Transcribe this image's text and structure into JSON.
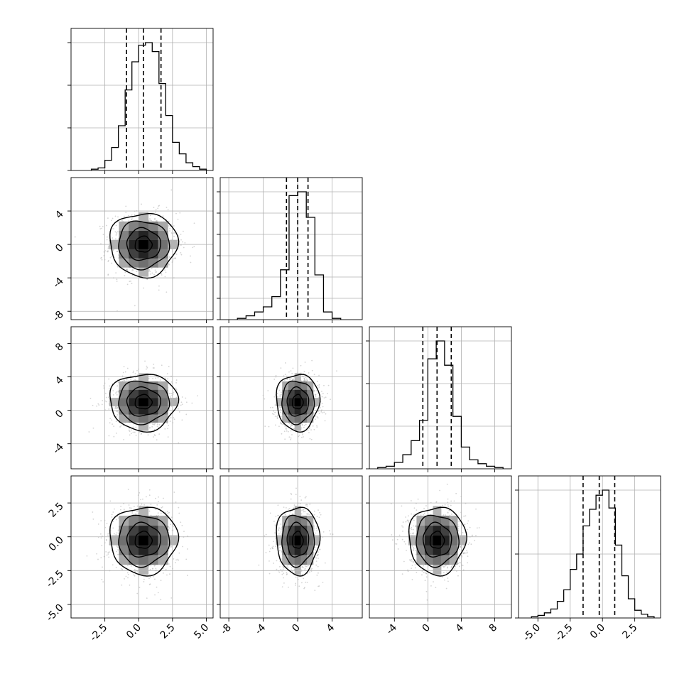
{
  "figure": {
    "type": "corner-plot",
    "colors": {
      "histogram": "#000000",
      "contour": "#000000",
      "scatter": "#b0b0b0",
      "grid": "#b0b0b0",
      "axes": "#000000",
      "quantile_lines": "#000000"
    }
  },
  "chart_data": [
    {
      "type": "histogram",
      "panel": "diag-0",
      "xlim": [
        -5,
        5.5
      ],
      "bins_x": [
        -3.5,
        -3.0,
        -2.5,
        -2.0,
        -1.5,
        -1.0,
        -0.5,
        0.0,
        0.5,
        1.0,
        1.5,
        2.0,
        2.5,
        3.0,
        3.5,
        4.0,
        4.5,
        5.0
      ],
      "heights": [
        0.01,
        0.02,
        0.08,
        0.18,
        0.35,
        0.63,
        0.85,
        0.98,
        1.0,
        0.93,
        0.68,
        0.43,
        0.22,
        0.13,
        0.06,
        0.03,
        0.01
      ],
      "quantiles": [
        -0.9,
        0.35,
        1.65
      ],
      "yticks_count": 4,
      "grid": true
    },
    {
      "type": "histogram",
      "panel": "diag-1",
      "xlim": [
        -9,
        7.5
      ],
      "bins_x": [
        -7.0,
        -6.0,
        -5.0,
        -4.0,
        -3.0,
        -2.0,
        -1.0,
        0.0,
        1.0,
        2.0,
        3.0,
        4.0,
        5.0
      ],
      "heights": [
        0.01,
        0.03,
        0.06,
        0.1,
        0.18,
        0.39,
        0.97,
        1.0,
        0.8,
        0.35,
        0.06,
        0.01
      ],
      "quantiles": [
        -1.3,
        0.0,
        1.2
      ],
      "xticks": [
        "-8",
        "-4",
        "0",
        "4"
      ],
      "yticks_count": 7,
      "grid": true
    },
    {
      "type": "histogram",
      "panel": "diag-2",
      "xlim": [
        -7,
        10
      ],
      "bins_x": [
        -6.0,
        -5.0,
        -4.0,
        -3.0,
        -2.0,
        -1.0,
        0.0,
        1.0,
        2.0,
        3.0,
        4.0,
        5.0,
        6.0,
        7.0,
        8.0,
        9.0
      ],
      "heights": [
        0.01,
        0.02,
        0.05,
        0.11,
        0.22,
        0.38,
        0.86,
        1.0,
        0.81,
        0.41,
        0.17,
        0.07,
        0.04,
        0.02,
        0.01
      ],
      "quantiles": [
        -0.6,
        1.1,
        2.8
      ],
      "xticks": [
        "-4",
        "0",
        "4",
        "8"
      ],
      "yticks_count": 4,
      "grid": true
    },
    {
      "type": "histogram",
      "panel": "diag-3",
      "xlim": [
        -6.5,
        4.5
      ],
      "bins_x": [
        -5.5,
        -5.0,
        -4.5,
        -4.0,
        -3.5,
        -3.0,
        -2.5,
        -2.0,
        -1.5,
        -1.0,
        -0.5,
        0.0,
        0.5,
        1.0,
        1.5,
        2.0,
        2.5,
        3.0,
        3.5,
        4.0
      ],
      "heights": [
        0.01,
        0.02,
        0.04,
        0.07,
        0.13,
        0.22,
        0.38,
        0.5,
        0.72,
        0.85,
        0.96,
        1.0,
        0.86,
        0.57,
        0.33,
        0.15,
        0.06,
        0.03,
        0.01
      ],
      "quantiles": [
        -1.5,
        -0.25,
        0.95
      ],
      "xticks": [
        "-5.0",
        "-2.5",
        "0.0",
        "2.5"
      ],
      "yticks_count": 3,
      "grid": true
    },
    {
      "type": "scatter-contour",
      "panel": "row1-col0",
      "xlim": [
        -5,
        5.5
      ],
      "ylim": [
        -9,
        8
      ],
      "center": [
        0.35,
        0.0
      ],
      "spread": [
        1.25,
        1.9
      ],
      "yticks": [
        "4",
        "0",
        "-4",
        "-8"
      ]
    },
    {
      "type": "scatter-contour",
      "panel": "row2-col0",
      "xlim": [
        -5,
        5.5
      ],
      "ylim": [
        -7,
        10
      ],
      "center": [
        0.35,
        1.0
      ],
      "spread": [
        1.25,
        1.7
      ],
      "yticks": [
        "8",
        "4",
        "0",
        "-4"
      ]
    },
    {
      "type": "scatter-contour",
      "panel": "row2-col1",
      "xlim": [
        -9,
        7.5
      ],
      "ylim": [
        -7,
        10
      ],
      "center": [
        0.0,
        1.0
      ],
      "spread": [
        1.25,
        1.7
      ]
    },
    {
      "type": "scatter-contour",
      "panel": "row3-col0",
      "xlim": [
        -5,
        5.5
      ],
      "ylim": [
        -6,
        4.5
      ],
      "center": [
        0.35,
        -0.25
      ],
      "spread": [
        1.25,
        1.25
      ],
      "xticks": [
        "-2.5",
        "0.0",
        "2.5",
        "5.0"
      ],
      "yticks": [
        "2.5",
        "0.0",
        "-2.5",
        "-5.0"
      ]
    },
    {
      "type": "scatter-contour",
      "panel": "row3-col1",
      "xlim": [
        -9,
        7.5
      ],
      "ylim": [
        -6,
        4.5
      ],
      "center": [
        0.0,
        -0.25
      ],
      "spread": [
        1.25,
        1.25
      ]
    },
    {
      "type": "scatter-contour",
      "panel": "row3-col2",
      "xlim": [
        -7,
        10
      ],
      "ylim": [
        -6,
        4.5
      ],
      "center": [
        1.1,
        -0.25
      ],
      "spread": [
        1.7,
        1.25
      ]
    }
  ]
}
